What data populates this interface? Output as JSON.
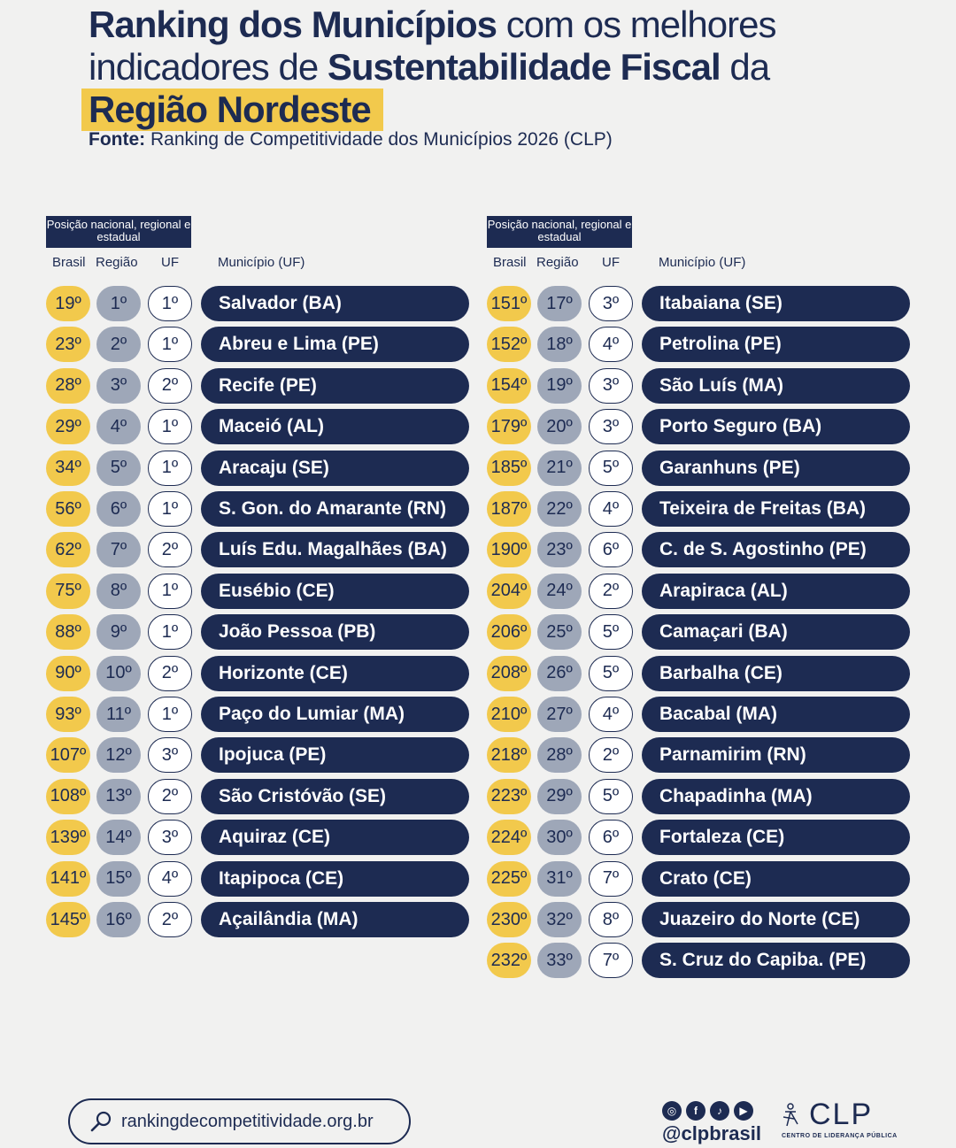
{
  "title": {
    "part1_bold": "Ranking dos Municípios",
    "part1_light": " com os melhores",
    "part2_light": "indicadores de ",
    "part2_bold": "Sustentabilidade Fiscal",
    "part2_end": " da",
    "highlight": "Região Nordeste"
  },
  "source": {
    "label": "Fonte:",
    "text": " Ranking de Competitividade dos Municípios 2026 (CLP)"
  },
  "table_header": {
    "box": "Posição nacional, regional e estadual",
    "col_brasil": "Brasil",
    "col_regiao": "Região",
    "col_uf": "UF",
    "col_municipio": "Município (UF)"
  },
  "left_rows": [
    {
      "brasil": "19º",
      "regiao": "1º",
      "uf": "1º",
      "municipio": "Salvador (BA)"
    },
    {
      "brasil": "23º",
      "regiao": "2º",
      "uf": "1º",
      "municipio": "Abreu e Lima (PE)"
    },
    {
      "brasil": "28º",
      "regiao": "3º",
      "uf": "2º",
      "municipio": "Recife (PE)"
    },
    {
      "brasil": "29º",
      "regiao": "4º",
      "uf": "1º",
      "municipio": "Maceió (AL)"
    },
    {
      "brasil": "34º",
      "regiao": "5º",
      "uf": "1º",
      "municipio": "Aracaju (SE)"
    },
    {
      "brasil": "56º",
      "regiao": "6º",
      "uf": "1º",
      "municipio": "S. Gon. do Amarante (RN)"
    },
    {
      "brasil": "62º",
      "regiao": "7º",
      "uf": "2º",
      "municipio": "Luís Edu. Magalhães (BA)"
    },
    {
      "brasil": "75º",
      "regiao": "8º",
      "uf": "1º",
      "municipio": "Eusébio (CE)"
    },
    {
      "brasil": "88º",
      "regiao": "9º",
      "uf": "1º",
      "municipio": "João Pessoa (PB)"
    },
    {
      "brasil": "90º",
      "regiao": "10º",
      "uf": "2º",
      "municipio": "Horizonte (CE)"
    },
    {
      "brasil": "93º",
      "regiao": "11º",
      "uf": "1º",
      "municipio": "Paço do Lumiar (MA)"
    },
    {
      "brasil": "107º",
      "regiao": "12º",
      "uf": "3º",
      "municipio": "Ipojuca (PE)"
    },
    {
      "brasil": "108º",
      "regiao": "13º",
      "uf": "2º",
      "municipio": "São Cristóvão (SE)"
    },
    {
      "brasil": "139º",
      "regiao": "14º",
      "uf": "3º",
      "municipio": "Aquiraz (CE)"
    },
    {
      "brasil": "141º",
      "regiao": "15º",
      "uf": "4º",
      "municipio": "Itapipoca (CE)"
    },
    {
      "brasil": "145º",
      "regiao": "16º",
      "uf": "2º",
      "municipio": "Açailândia (MA)"
    }
  ],
  "right_rows": [
    {
      "brasil": "151º",
      "regiao": "17º",
      "uf": "3º",
      "municipio": "Itabaiana (SE)"
    },
    {
      "brasil": "152º",
      "regiao": "18º",
      "uf": "4º",
      "municipio": "Petrolina (PE)"
    },
    {
      "brasil": "154º",
      "regiao": "19º",
      "uf": "3º",
      "municipio": "São Luís (MA)"
    },
    {
      "brasil": "179º",
      "regiao": "20º",
      "uf": "3º",
      "municipio": "Porto Seguro (BA)"
    },
    {
      "brasil": "185º",
      "regiao": "21º",
      "uf": "5º",
      "municipio": "Garanhuns (PE)"
    },
    {
      "brasil": "187º",
      "regiao": "22º",
      "uf": "4º",
      "municipio": "Teixeira de Freitas (BA)"
    },
    {
      "brasil": "190º",
      "regiao": "23º",
      "uf": "6º",
      "municipio": "C. de S. Agostinho (PE)"
    },
    {
      "brasil": "204º",
      "regiao": "24º",
      "uf": "2º",
      "municipio": "Arapiraca (AL)"
    },
    {
      "brasil": "206º",
      "regiao": "25º",
      "uf": "5º",
      "municipio": "Camaçari (BA)"
    },
    {
      "brasil": "208º",
      "regiao": "26º",
      "uf": "5º",
      "municipio": "Barbalha (CE)"
    },
    {
      "brasil": "210º",
      "regiao": "27º",
      "uf": "4º",
      "municipio": "Bacabal (MA)"
    },
    {
      "brasil": "218º",
      "regiao": "28º",
      "uf": "2º",
      "municipio": "Parnamirim (RN)"
    },
    {
      "brasil": "223º",
      "regiao": "29º",
      "uf": "5º",
      "municipio": "Chapadinha (MA)"
    },
    {
      "brasil": "224º",
      "regiao": "30º",
      "uf": "6º",
      "municipio": "Fortaleza (CE)"
    },
    {
      "brasil": "225º",
      "regiao": "31º",
      "uf": "7º",
      "municipio": "Crato (CE)"
    },
    {
      "brasil": "230º",
      "regiao": "32º",
      "uf": "8º",
      "municipio": "Juazeiro do Norte (CE)"
    },
    {
      "brasil": "232º",
      "regiao": "33º",
      "uf": "7º",
      "municipio": "S. Cruz do Capiba. (PE)"
    }
  ],
  "footer": {
    "url": "rankingdecompetitividade.org.br",
    "handle": "@clpbrasil",
    "logo_text": "CLP",
    "logo_sub": "CENTRO DE LIDERANÇA PÚBLICA"
  },
  "colors": {
    "navy": "#1d2b52",
    "yellow": "#f2c94c",
    "gray": "#9ea7b8",
    "background": "#f1f1f0"
  }
}
